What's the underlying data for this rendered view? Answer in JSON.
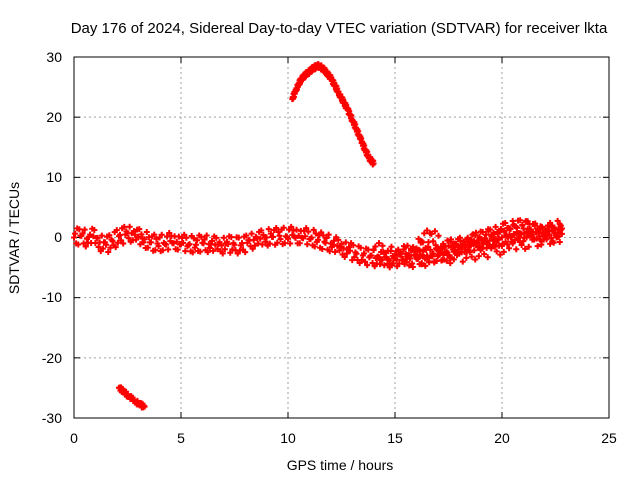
{
  "chart_data": {
    "type": "scatter",
    "title": "Day 176 of 2024, Sidereal Day-to-day VTEC variation (SDTVAR) for receiver lkta",
    "xlabel": "GPS time / hours",
    "ylabel": "SDTVAR / TECUs",
    "xlim": [
      0,
      25
    ],
    "ylim": [
      -30,
      30
    ],
    "xticks": [
      "0",
      "5",
      "10",
      "15",
      "20",
      "25"
    ],
    "yticks": [
      "30",
      "20",
      "10",
      "0",
      "-10",
      "-20",
      "-30"
    ],
    "grid": true,
    "marker_color": "#ff0000",
    "series": [
      {
        "name": "main-band",
        "x": [
          0.0,
          0.3,
          0.6,
          0.9,
          1.2,
          1.5,
          1.8,
          2.1,
          2.4,
          2.7,
          3.0,
          3.3,
          3.6,
          3.9,
          4.2,
          4.5,
          4.8,
          5.1,
          5.4,
          5.7,
          6.0,
          6.3,
          6.6,
          6.9,
          7.2,
          7.5,
          7.8,
          8.1,
          8.4,
          8.7,
          9.0,
          9.3,
          9.6,
          9.9,
          10.2,
          10.5,
          10.8,
          11.1,
          11.4,
          11.7,
          12.0,
          12.3,
          12.6,
          12.9,
          13.2,
          13.5,
          13.8,
          14.1,
          14.4,
          14.7,
          15.0,
          15.3,
          15.6,
          15.9,
          16.2,
          16.5,
          16.8,
          17.1,
          17.4,
          17.7,
          18.0,
          18.3,
          18.6,
          18.9,
          19.2,
          19.5,
          19.8,
          20.1,
          20.4,
          20.7,
          21.0,
          21.3,
          21.6,
          21.9,
          22.2,
          22.5,
          22.8
        ],
        "y": [
          0.0,
          0.3,
          -0.2,
          0.2,
          -0.8,
          -1.2,
          -0.6,
          0.2,
          0.5,
          0.7,
          0.1,
          -0.3,
          -0.8,
          -1.0,
          -0.9,
          -0.6,
          -0.7,
          -0.9,
          -1.1,
          -1.2,
          -0.9,
          -1.1,
          -1.2,
          -1.3,
          -1.1,
          -1.2,
          -1.3,
          -0.9,
          -0.4,
          -0.2,
          0.0,
          0.1,
          0.3,
          0.2,
          0.4,
          0.3,
          0.2,
          0.0,
          -0.4,
          -0.7,
          -1.0,
          -1.4,
          -1.8,
          -2.2,
          -2.7,
          -3.0,
          -3.3,
          -3.4,
          -3.7,
          -3.6,
          -3.5,
          -3.2,
          -2.9,
          -3.0,
          -3.1,
          -3.0,
          -2.7,
          -2.6,
          -2.3,
          -2.0,
          -1.6,
          -1.2,
          -0.9,
          -0.5,
          -0.1,
          0.2,
          0.6,
          1.1,
          1.4,
          1.6,
          1.5,
          1.3,
          0.9,
          0.7,
          1.0,
          1.3,
          1.5
        ]
      },
      {
        "name": "upper-band",
        "x": [
          14.0,
          14.5,
          15.0,
          15.5,
          16.0,
          16.3,
          16.7,
          17.2,
          17.7,
          18.2,
          18.7,
          19.2,
          19.7,
          20.2,
          20.7,
          21.2,
          21.7,
          22.2,
          22.7
        ],
        "y": [
          -2.0,
          -2.6,
          -3.0,
          -2.7,
          -1.8,
          -0.8,
          0.6,
          -1.8,
          -1.6,
          -1.0,
          -0.6,
          -0.4,
          -0.2,
          0.3,
          0.9,
          1.4,
          1.0,
          0.5,
          0.9
        ]
      },
      {
        "name": "lower-band",
        "x": [
          15.5,
          16.0,
          16.5,
          17.0,
          17.5,
          18.0,
          18.5,
          19.0,
          19.5,
          20.0,
          20.5,
          21.0,
          21.5,
          22.0,
          22.5,
          22.8
        ],
        "y": [
          -3.6,
          -3.5,
          -3.3,
          -3.1,
          -2.9,
          -2.7,
          -2.4,
          -2.1,
          -1.8,
          -1.4,
          -1.0,
          -0.6,
          -0.2,
          0.1,
          0.4,
          0.6
        ]
      },
      {
        "name": "high-arc",
        "x": [
          10.2,
          10.4,
          10.6,
          10.8,
          11.0,
          11.2,
          11.4,
          11.6,
          11.8,
          12.0,
          12.2,
          12.4,
          12.6,
          12.8,
          13.0,
          13.2,
          13.4,
          13.6,
          13.8,
          14.0
        ],
        "y": [
          23.0,
          24.8,
          26.2,
          27.0,
          27.6,
          28.2,
          28.5,
          28.2,
          27.4,
          26.5,
          25.2,
          23.8,
          22.5,
          21.2,
          19.6,
          18.0,
          16.3,
          14.6,
          13.2,
          12.3
        ]
      },
      {
        "name": "low-segment",
        "x": [
          2.1,
          2.3,
          2.5,
          2.7,
          2.9,
          3.1,
          3.3
        ],
        "y": [
          -25.0,
          -25.5,
          -26.2,
          -26.8,
          -27.3,
          -27.8,
          -28.1
        ]
      }
    ]
  }
}
